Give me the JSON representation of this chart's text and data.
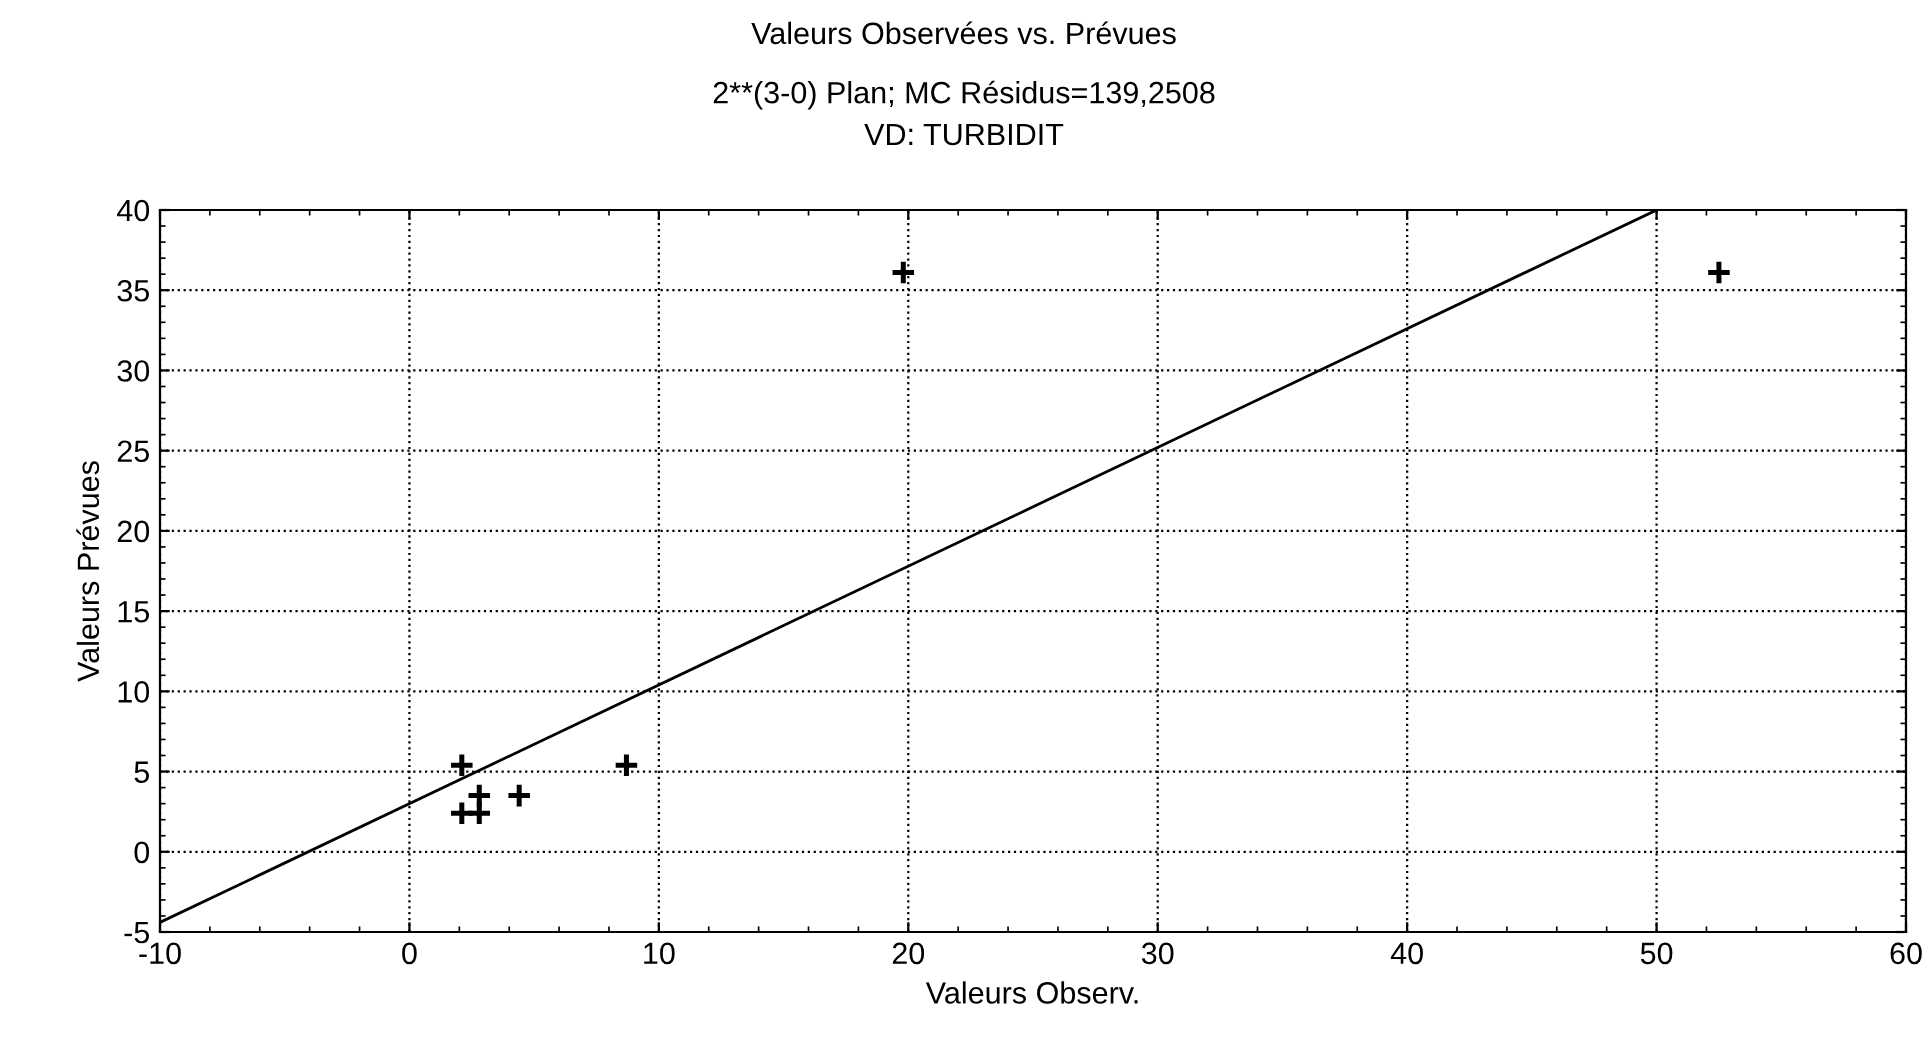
{
  "chart_data": {
    "type": "scatter",
    "title": "Valeurs Observées vs. Prévues",
    "subtitle": "2**(3-0) Plan; MC Résidus=139,2508\nVD: TURBIDIT",
    "xlabel": "Valeurs Observ.",
    "ylabel": "Valeurs Prévues",
    "series": [
      {
        "color": "#000000",
        "marker": "cross",
        "x": [
          2.1,
          2.8,
          4.4,
          8.7,
          2.1,
          2.8,
          19.8,
          52.5
        ],
        "values": [
          5.4,
          3.5,
          3.5,
          5.4,
          2.4,
          2.4,
          36.1,
          36.1
        ]
      },
      {
        "type": "line",
        "color": "#000000",
        "marker": "none",
        "x": [
          -10,
          50
        ],
        "values": [
          -4.4,
          40
        ]
      }
    ],
    "xlim": [
      -10,
      60
    ],
    "xticks": [
      -10,
      0,
      10,
      20,
      30,
      40,
      50,
      60
    ],
    "ylim": [
      -5,
      40
    ],
    "yticks": [
      -5,
      0,
      5,
      10,
      15,
      20,
      25,
      30,
      35,
      40
    ],
    "grid": true,
    "legend": false
  }
}
